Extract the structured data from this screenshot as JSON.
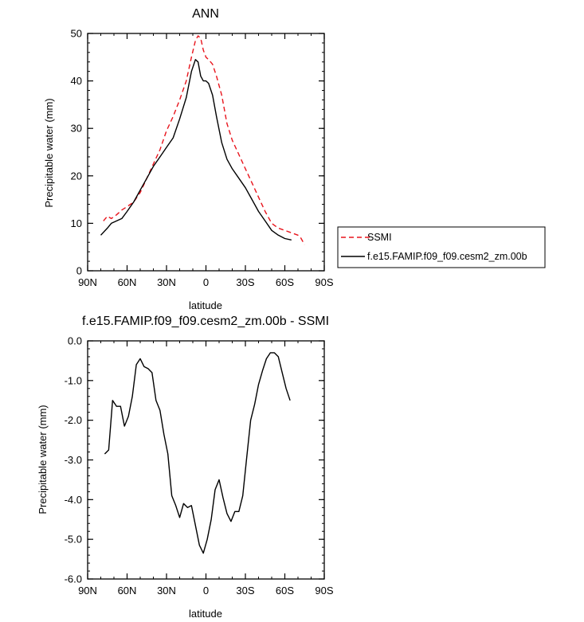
{
  "chart_data": [
    {
      "type": "line",
      "title": "ANN",
      "xlabel": "latitude",
      "ylabel": "Precipitable water (mm)",
      "xlim": [
        90,
        -90
      ],
      "ylim": [
        0,
        50
      ],
      "xticks": [
        90,
        60,
        30,
        0,
        -30,
        -60,
        -90
      ],
      "xtick_labels": [
        "90N",
        "60N",
        "30N",
        "0",
        "30S",
        "60S",
        "90S"
      ],
      "yticks": [
        0,
        10,
        20,
        30,
        40,
        50
      ],
      "ytick_labels": [
        "0",
        "10",
        "20",
        "30",
        "40",
        "50"
      ],
      "grid": false,
      "legend_position": "right",
      "series": [
        {
          "name": "SSMI",
          "color": "#e8141c",
          "style": "dashed",
          "x": [
            78,
            75,
            72,
            68,
            64,
            60,
            55,
            50,
            45,
            40,
            35,
            30,
            25,
            20,
            15,
            11,
            8,
            6,
            4,
            2,
            0,
            -2,
            -5,
            -8,
            -12,
            -16,
            -20,
            -25,
            -30,
            -35,
            -40,
            -45,
            -50,
            -55,
            -60,
            -65,
            -70,
            -72,
            -75
          ],
          "y": [
            10.5,
            11.5,
            11.0,
            11.8,
            12.8,
            13.5,
            14.5,
            16.5,
            19.5,
            22.5,
            25.5,
            29.5,
            32.5,
            36.0,
            40.0,
            45.0,
            48.5,
            49.5,
            49.0,
            46.5,
            45.0,
            44.5,
            43.5,
            41.0,
            37.0,
            31.0,
            27.5,
            24.5,
            21.5,
            18.5,
            15.5,
            12.5,
            10.0,
            9.0,
            8.5,
            8.0,
            7.5,
            7.0,
            5.5
          ]
        },
        {
          "name": "f.e15.FAMIP.f09_f09.cesm2_zm.00b",
          "color": "#000000",
          "style": "solid",
          "x": [
            80,
            75,
            72,
            68,
            64,
            60,
            55,
            50,
            45,
            40,
            35,
            30,
            25,
            20,
            15,
            11,
            8,
            6,
            4,
            2,
            0,
            -2,
            -5,
            -8,
            -12,
            -16,
            -20,
            -25,
            -30,
            -35,
            -40,
            -45,
            -50,
            -55,
            -60,
            -65
          ],
          "y": [
            7.5,
            9.0,
            10.0,
            10.5,
            11.0,
            12.5,
            14.5,
            17.0,
            19.5,
            22.0,
            24.0,
            26.0,
            28.0,
            32.0,
            36.5,
            42.0,
            44.5,
            44.0,
            41.0,
            40.0,
            40.0,
            39.5,
            37.0,
            32.5,
            27.0,
            23.5,
            21.5,
            19.5,
            17.5,
            15.0,
            12.5,
            10.5,
            8.5,
            7.5,
            6.8,
            6.5
          ]
        }
      ]
    },
    {
      "type": "line",
      "title": "f.e15.FAMIP.f09_f09.cesm2_zm.00b - SSMI",
      "xlabel": "latitude",
      "ylabel": "Precipitable water (mm)",
      "xlim": [
        90,
        -90
      ],
      "ylim": [
        -6,
        0
      ],
      "xticks": [
        90,
        60,
        30,
        0,
        -30,
        -60,
        -90
      ],
      "xtick_labels": [
        "90N",
        "60N",
        "30N",
        "0",
        "30S",
        "60S",
        "90S"
      ],
      "yticks": [
        0,
        -1,
        -2,
        -3,
        -4,
        -5,
        -6
      ],
      "ytick_labels": [
        "0.0",
        "-1.0",
        "-2.0",
        "-3.0",
        "-4.0",
        "-5.0",
        "-6.0"
      ],
      "grid": false,
      "series": [
        {
          "color": "#000000",
          "style": "solid",
          "x": [
            77,
            74,
            71,
            68,
            65,
            62,
            59,
            56,
            53,
            50,
            47,
            44,
            41,
            38,
            35,
            32,
            29,
            26,
            23,
            20,
            17,
            14,
            11,
            8,
            5,
            2,
            -1,
            -4,
            -7,
            -10,
            -13,
            -16,
            -19,
            -22,
            -25,
            -28,
            -31,
            -34,
            -37,
            -40,
            -43,
            -46,
            -49,
            -52,
            -55,
            -58,
            -61,
            -64
          ],
          "y": [
            -2.85,
            -2.75,
            -1.5,
            -1.65,
            -1.65,
            -2.15,
            -1.9,
            -1.4,
            -0.6,
            -0.45,
            -0.65,
            -0.7,
            -0.8,
            -1.5,
            -1.75,
            -2.35,
            -2.85,
            -3.9,
            -4.15,
            -4.45,
            -4.1,
            -4.2,
            -4.15,
            -4.65,
            -5.15,
            -5.35,
            -5.0,
            -4.5,
            -3.75,
            -3.5,
            -3.95,
            -4.35,
            -4.55,
            -4.3,
            -4.3,
            -3.9,
            -2.95,
            -2.0,
            -1.6,
            -1.1,
            -0.75,
            -0.45,
            -0.3,
            -0.3,
            -0.4,
            -0.8,
            -1.2,
            -1.5
          ]
        }
      ]
    }
  ],
  "legend": {
    "items": [
      {
        "label": "SSMI",
        "color": "#e8141c",
        "style": "dashed"
      },
      {
        "label": "f.e15.FAMIP.f09_f09.cesm2_zm.00b",
        "color": "#000000",
        "style": "solid"
      }
    ]
  }
}
